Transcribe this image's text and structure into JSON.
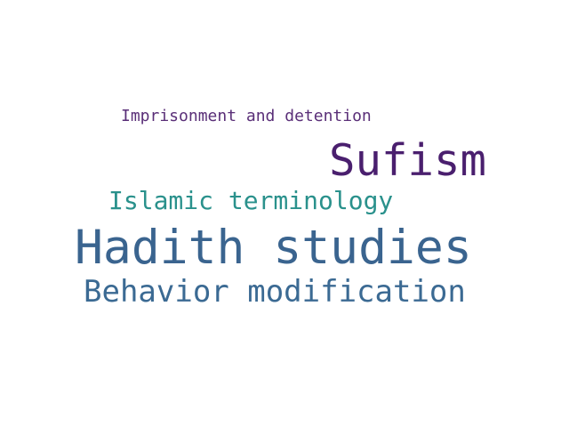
{
  "words": [
    {
      "text": "Imprisonment and detention",
      "color": "#5a2f78"
    },
    {
      "text": "Sufism",
      "color": "#4a1f6e"
    },
    {
      "text": "Islamic terminology",
      "color": "#2a918c"
    },
    {
      "text": "Hadith studies",
      "color": "#3a648f"
    },
    {
      "text": "Behavior modification",
      "color": "#3b6a93"
    }
  ]
}
